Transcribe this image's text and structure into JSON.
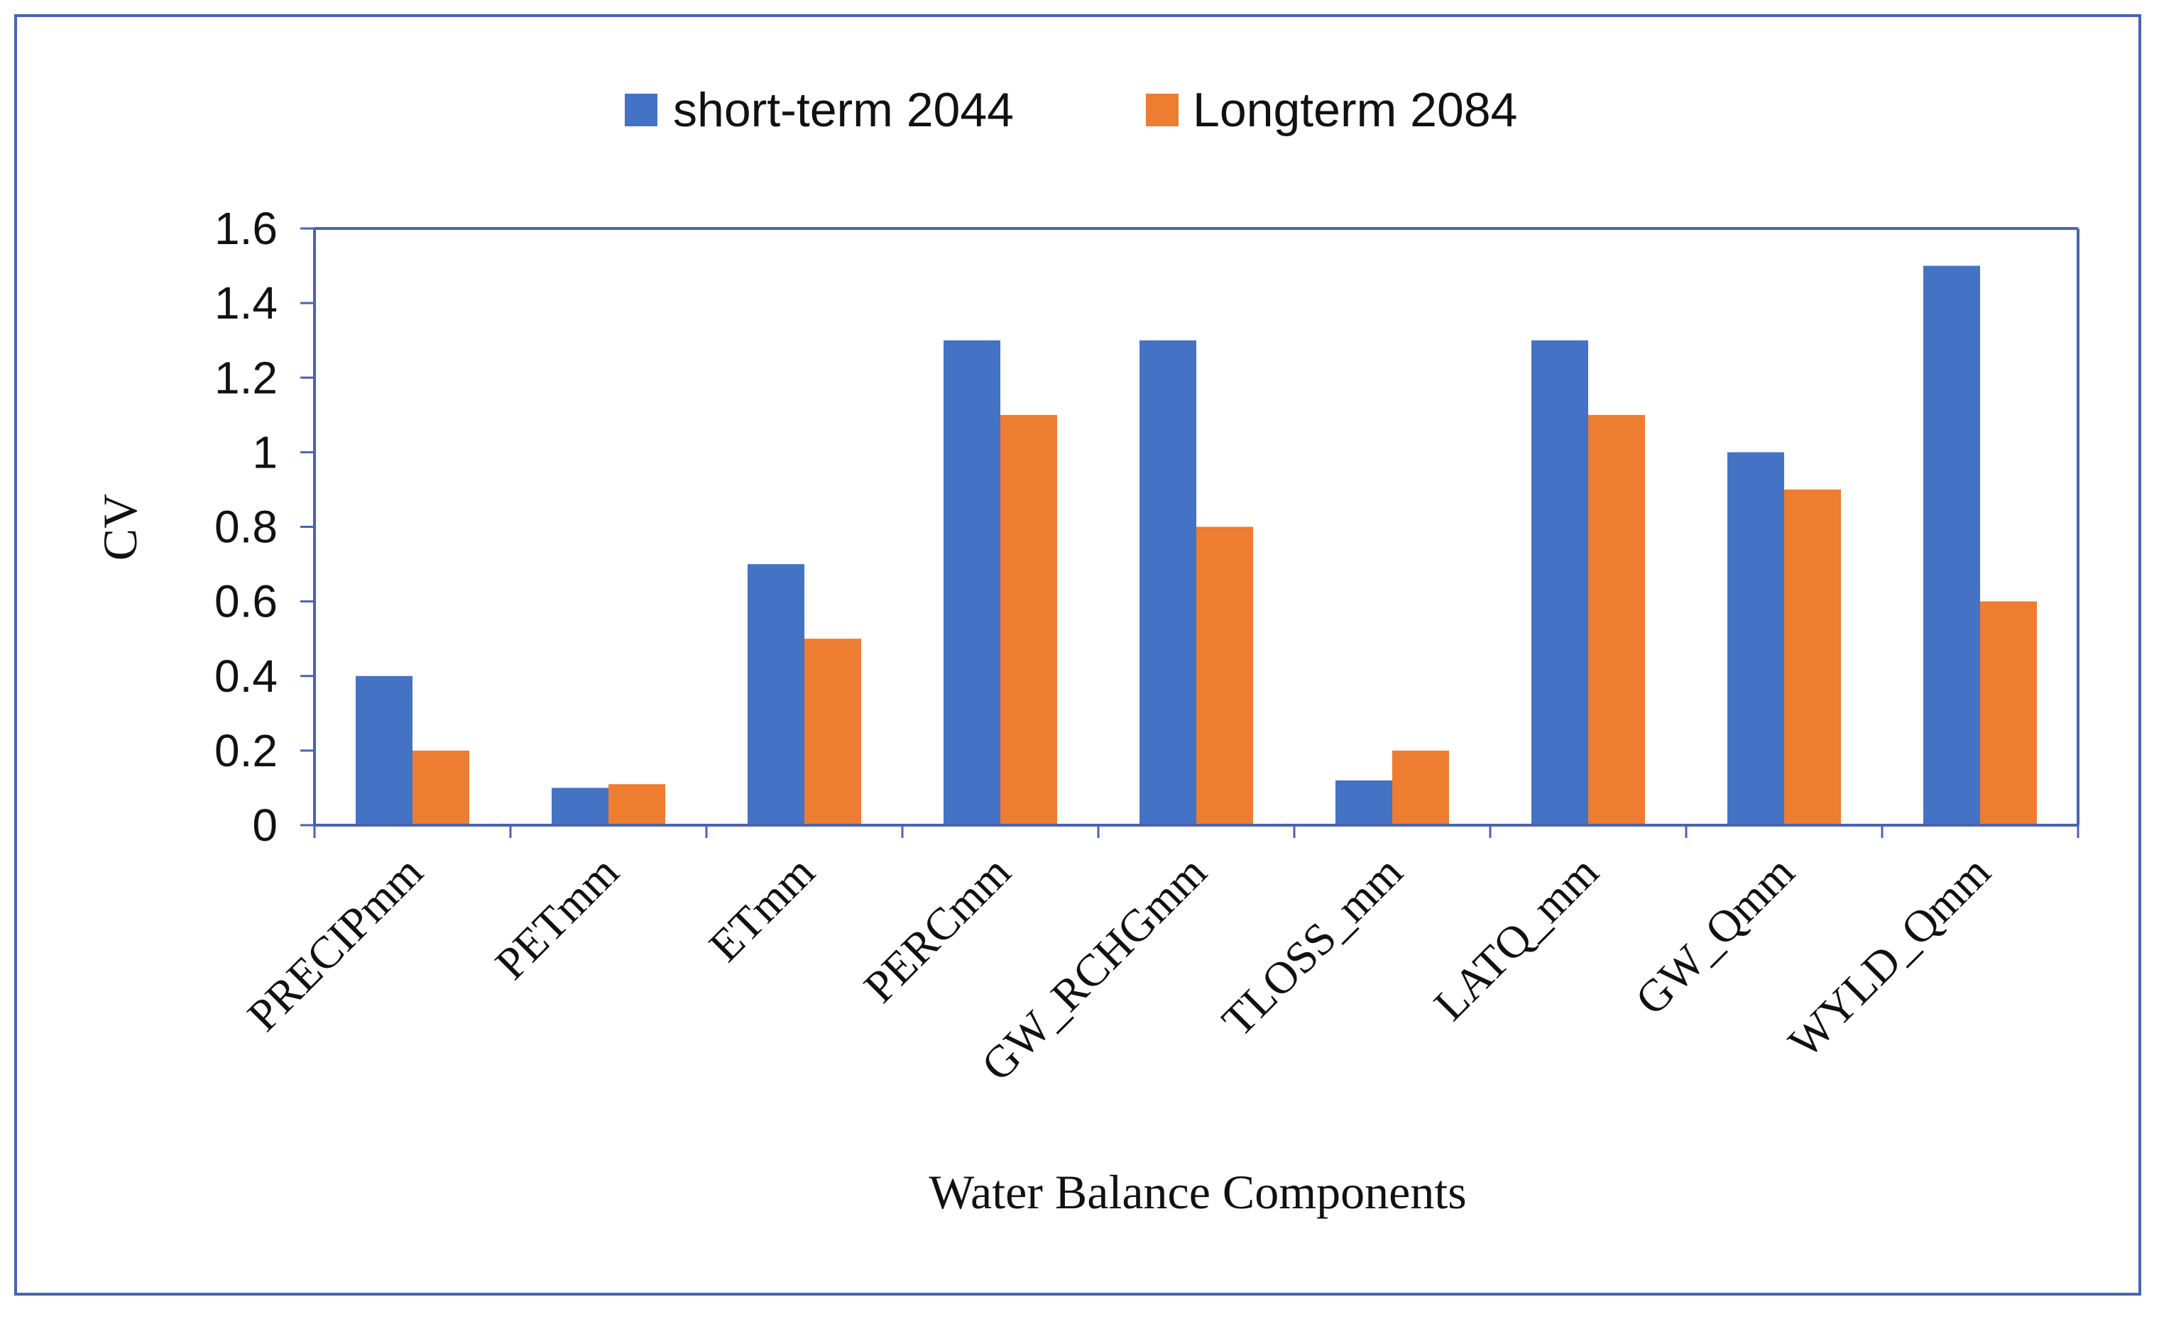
{
  "chart_data": {
    "type": "bar",
    "title": "",
    "xlabel": "Water Balance Components",
    "ylabel": "CV",
    "ylim": [
      0,
      1.6
    ],
    "yticks": [
      "0",
      "0.2",
      "0.4",
      "0.6",
      "0.8",
      "1",
      "1.2",
      "1.4",
      "1.6"
    ],
    "ytick_values": [
      0,
      0.2,
      0.4,
      0.6,
      0.8,
      1,
      1.2,
      1.4,
      1.6
    ],
    "grid": false,
    "legend_position": "top-center",
    "categories": [
      "PRECIPmm",
      "PETmm",
      "ETmm",
      "PERCmm",
      "GW_RCHGmm",
      "TLOSS_mm",
      "LATQ_mm",
      "GW_Qmm",
      "WYLD_Qmm"
    ],
    "series": [
      {
        "name": "short-term 2044",
        "color": "#4472c4",
        "values": [
          0.4,
          0.1,
          0.7,
          1.3,
          1.3,
          0.12,
          1.3,
          1.0,
          1.5
        ]
      },
      {
        "name": "Longterm 2084",
        "color": "#ed7d31",
        "values": [
          0.2,
          0.11,
          0.5,
          1.1,
          0.8,
          0.2,
          1.1,
          0.9,
          0.6
        ]
      }
    ],
    "axis_color": "#4a63b3",
    "frame_color": "#4a63b3"
  }
}
